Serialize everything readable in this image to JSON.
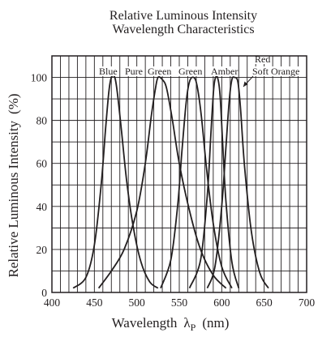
{
  "chart_data": {
    "type": "line",
    "title": [
      "Relative Luminous Intensity",
      "Wavelength Characteristics"
    ],
    "xlabel": "Wavelength",
    "xlabel_symbol": "λ",
    "xlabel_subscript": "P",
    "xlabel_unit": "(nm)",
    "ylabel": "Relative Luminous Intensity",
    "ylabel_unit": "(%)",
    "xlim": [
      400,
      700
    ],
    "ylim": [
      0,
      110
    ],
    "x_ticks": [
      400,
      450,
      500,
      550,
      600,
      650,
      700
    ],
    "y_ticks": [
      0,
      20,
      40,
      60,
      80,
      100
    ],
    "grid": true,
    "series": [
      {
        "name": "Blue",
        "x": [
          425,
          440,
          450,
          458,
          463,
          467,
          470,
          474,
          477,
          482,
          488,
          496,
          505,
          515,
          525
        ],
        "y": [
          2,
          7,
          22,
          50,
          75,
          93,
          100,
          100,
          93,
          75,
          52,
          30,
          14,
          5,
          2
        ]
      },
      {
        "name": "Pure Green",
        "x": [
          455,
          470,
          485,
          500,
          510,
          517,
          522,
          525,
          530,
          535,
          542,
          550,
          562,
          575,
          590,
          605
        ],
        "y": [
          2,
          10,
          20,
          38,
          60,
          82,
          95,
          100,
          99,
          95,
          80,
          60,
          38,
          20,
          8,
          2
        ]
      },
      {
        "name": "Green",
        "x": [
          528,
          540,
          548,
          553,
          558,
          562,
          567,
          571,
          576,
          582,
          590,
          600,
          612
        ],
        "y": [
          2,
          15,
          40,
          65,
          88,
          98,
          100,
          96,
          82,
          58,
          32,
          12,
          2
        ]
      },
      {
        "name": "Amber",
        "x": [
          562,
          575,
          583,
          587,
          590,
          592,
          595,
          598,
          601,
          605,
          612,
          620
        ],
        "y": [
          2,
          15,
          45,
          72,
          92,
          99,
          100,
          92,
          70,
          42,
          14,
          2
        ]
      },
      {
        "name": "Red",
        "x": [
          583,
          592,
          600,
          605,
          609,
          612,
          615,
          619,
          622,
          627,
          635,
          645,
          655
        ],
        "y": [
          2,
          12,
          40,
          68,
          90,
          99,
          100,
          98,
          86,
          58,
          28,
          9,
          2
        ]
      }
    ],
    "series_labels": [
      "Blue",
      "Pure",
      "Green",
      "Green",
      "Amber",
      "Red",
      "Soft Orange"
    ]
  }
}
